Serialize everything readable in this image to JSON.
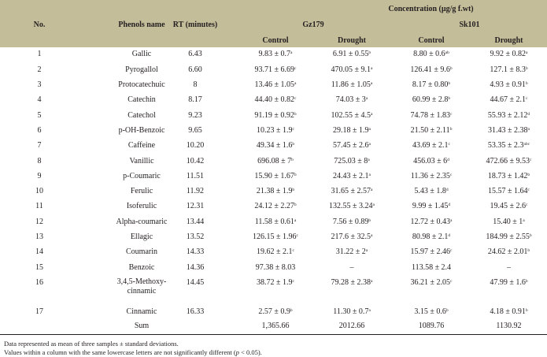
{
  "header": {
    "no": "No.",
    "phenol": "Phenols name",
    "rt": "RT (minutes)",
    "concentration": "Concentration (µg/g f.wt)",
    "cultivars": [
      "Gz179",
      "Sk101"
    ],
    "treatments": [
      "Control",
      "Drought",
      "Control",
      "Drought"
    ]
  },
  "rows": [
    {
      "no": "1",
      "name": "Gallic",
      "rt": "6.43",
      "vals": [
        [
          "9.83 ± 0.7",
          "a"
        ],
        [
          "6.91 ± 0.55",
          "b"
        ],
        [
          "8.80 ± 0.6",
          "ab"
        ],
        [
          "9.92 ± 0.82",
          "a"
        ]
      ]
    },
    {
      "no": "2",
      "name": "Pyrogallol",
      "rt": "6.60",
      "vals": [
        [
          "93.71 ± 6.69",
          "c"
        ],
        [
          "470.05 ± 9.1",
          "a"
        ],
        [
          "126.41 ± 9.6",
          "b"
        ],
        [
          "127.1 ± 8.3",
          "b"
        ]
      ]
    },
    {
      "no": "3",
      "name": "Protocatechuic",
      "rt": "8",
      "vals": [
        [
          "13.46 ± 1.05",
          "a"
        ],
        [
          "11.86 ± 1.05",
          "a"
        ],
        [
          "8.17 ± 0.80",
          "b"
        ],
        [
          "4.93 ± 0.91",
          "b"
        ]
      ]
    },
    {
      "no": "4",
      "name": "Catechin",
      "rt": "8.17",
      "vals": [
        [
          "44.40 ± 0.82",
          "c"
        ],
        [
          "74.03 ± 3",
          "a"
        ],
        [
          "60.99 ± 2.8",
          "b"
        ],
        [
          "44.67 ± 2.1",
          "c"
        ]
      ]
    },
    {
      "no": "5",
      "name": "Catechol",
      "rt": "9.23",
      "vals": [
        [
          "91.19 ± 0.92",
          "b"
        ],
        [
          "102.55 ± 4.5",
          "a"
        ],
        [
          "74.78 ± 1.83",
          "c"
        ],
        [
          "55.93 ± 2.12",
          "d"
        ]
      ]
    },
    {
      "no": "6",
      "name": "p-OH-Benzoic",
      "rt": "9.65",
      "vals": [
        [
          "10.23 ± 1.9",
          "c"
        ],
        [
          "29.18 ± 1.9",
          "a"
        ],
        [
          "21.50 ± 2.11",
          "b"
        ],
        [
          "31.43 ± 2.38",
          "a"
        ]
      ]
    },
    {
      "no": "7",
      "name": "Caffeine",
      "rt": "10.20",
      "vals": [
        [
          "49.34 ± 1.6",
          "b"
        ],
        [
          "57.45 ± 2.6",
          "a"
        ],
        [
          "43.69 ± 2.1",
          "c"
        ],
        [
          "53.35 ± 2.3",
          "abc"
        ]
      ]
    },
    {
      "no": "8",
      "name": "Vanillic",
      "rt": "10.42",
      "vals": [
        [
          "696.08 ± 7",
          "b"
        ],
        [
          "725.03 ± 8",
          "a"
        ],
        [
          "456.03 ± 6",
          "d"
        ],
        [
          "472.66 ± 9.53",
          "c"
        ]
      ]
    },
    {
      "no": "9",
      "name": "p-Coumaric",
      "rt": "11.51",
      "vals": [
        [
          "15.90 ± 1.67",
          "b"
        ],
        [
          "24.43 ± 2.1",
          "a"
        ],
        [
          "11.36 ± 2.35",
          "c"
        ],
        [
          "18.73 ± 1.42",
          "b"
        ]
      ]
    },
    {
      "no": "10",
      "name": "Ferulic",
      "rt": "11.92",
      "vals": [
        [
          "21.38 ± 1.9",
          "b"
        ],
        [
          "31.65 ± 2.57",
          "a"
        ],
        [
          "5.43 ± 1.8",
          "d"
        ],
        [
          "15.57 ± 1.64",
          "c"
        ]
      ]
    },
    {
      "no": "11",
      "name": "Isoferulic",
      "rt": "12.31",
      "vals": [
        [
          "24.12 ± 2.27",
          "b"
        ],
        [
          "132.55 ± 3.24",
          "a"
        ],
        [
          "9.99 ± 1.45",
          "d"
        ],
        [
          "19.45 ± 2.6",
          "c"
        ]
      ]
    },
    {
      "no": "12",
      "name": "Alpha-coumaric",
      "rt": "13.44",
      "vals": [
        [
          "11.58 ± 0.61",
          "a"
        ],
        [
          "7.56 ± 0.89",
          "b"
        ],
        [
          "12.72 ± 0.43",
          "a"
        ],
        [
          "15.40 ± 1",
          "a"
        ]
      ]
    },
    {
      "no": "13",
      "name": "Ellagic",
      "rt": "13.52",
      "vals": [
        [
          "126.15 ± 1.96",
          "c"
        ],
        [
          "217.6 ± 32.5",
          "a"
        ],
        [
          "80.98 ± 2.1",
          "d"
        ],
        [
          "184.99 ± 2.55",
          "b"
        ]
      ]
    },
    {
      "no": "14",
      "name": "Coumarin",
      "rt": "14.33",
      "vals": [
        [
          "19.62 ± 2.1",
          "c"
        ],
        [
          "31.22 ± 2",
          "a"
        ],
        [
          "15.97 ± 2.46",
          "c"
        ],
        [
          "24.62 ± 2.01",
          "b"
        ]
      ]
    },
    {
      "no": "15",
      "name": "Benzoic",
      "rt": "14.36",
      "vals": [
        [
          "97.38 ± 8.03",
          ""
        ],
        [
          "–",
          ""
        ],
        [
          "113.58 ± 2.4",
          ""
        ],
        [
          "–",
          ""
        ]
      ]
    },
    {
      "no": "16",
      "name": "3,4,5-Methoxy-cinnamic",
      "rt": "14.45",
      "vals": [
        [
          "38.72 ± 1.9",
          "c"
        ],
        [
          "79.28 ± 2.38",
          "a"
        ],
        [
          "36.21 ± 2.05",
          "c"
        ],
        [
          "47.99 ± 1.6",
          "b"
        ]
      ]
    },
    {
      "no": "17",
      "name": "Cinnamic",
      "rt": "16.33",
      "vals": [
        [
          "2.57 ± 0.9",
          "b"
        ],
        [
          "11.30 ± 0.7",
          "a"
        ],
        [
          "3.15 ± 0.6",
          "b"
        ],
        [
          "4.18 ± 0.91",
          "b"
        ]
      ]
    }
  ],
  "sum": {
    "label": "Sum",
    "vals": [
      "1,365.66",
      "2012.66",
      "1089.76",
      "1130.92"
    ]
  },
  "notes": {
    "line1": "Data represented as mean of three samples ± standard deviations.",
    "line2_pre": "Values within a column with the same lowercase letters are not significantly different (",
    "line2_p": "p",
    "line2_post": " < 0.05)."
  }
}
